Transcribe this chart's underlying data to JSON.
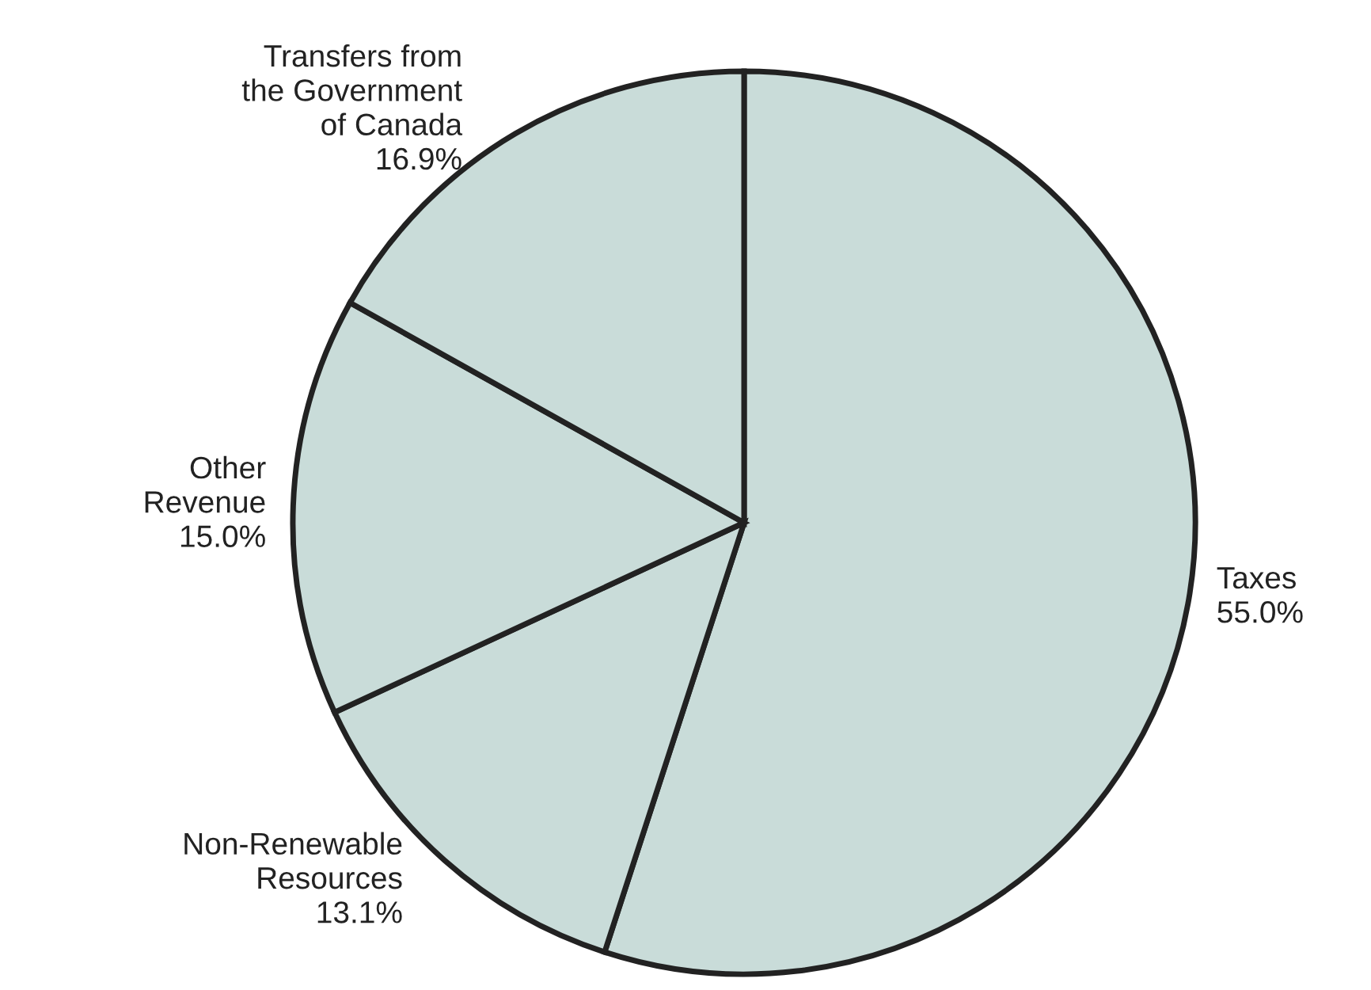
{
  "chart_data": {
    "type": "pie",
    "categories": [
      "Taxes",
      "Non-Renewable\nResources",
      "Other\nRevenue",
      "Transfers from\nthe Government\nof Canada"
    ],
    "values": [
      55.0,
      13.1,
      15.0,
      16.9
    ],
    "value_labels": [
      "55.0%",
      "13.1%",
      "15.0%",
      "16.9%"
    ],
    "colors": [
      "#c9dcd9",
      "#c9dcd9",
      "#c9dcd9",
      "#c9dcd9"
    ]
  }
}
